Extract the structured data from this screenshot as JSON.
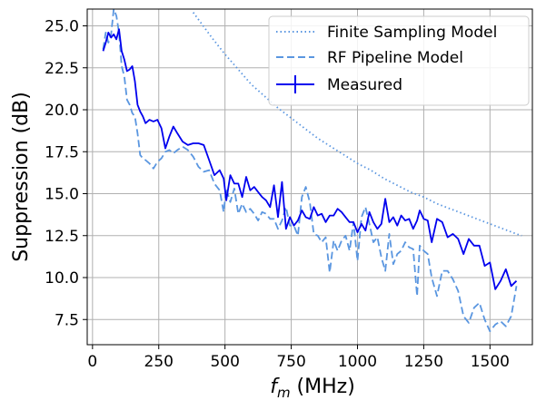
{
  "chart_data": {
    "type": "line",
    "title": "",
    "xlabel_italic": "f",
    "xlabel_sub": "m",
    "xlabel_rest": " (MHz)",
    "ylabel": "Suppression (dB)",
    "xlim": [
      -20,
      1660
    ],
    "ylim": [
      6.0,
      26.0
    ],
    "xticks": [
      0,
      250,
      500,
      750,
      1000,
      1250,
      1500
    ],
    "yticks": [
      7.5,
      10.0,
      12.5,
      15.0,
      17.5,
      20.0,
      22.5,
      25.0
    ],
    "grid": true,
    "legend_position": "top-right",
    "series": [
      {
        "name": "Finite Sampling Model",
        "style": "dotted",
        "color": "#5a96e0",
        "x": [
          380,
          450,
          500,
          550,
          600,
          650,
          700,
          750,
          800,
          850,
          900,
          950,
          1000,
          1050,
          1100,
          1150,
          1200,
          1250,
          1300,
          1350,
          1400,
          1450,
          1500,
          1550,
          1600,
          1620
        ],
        "y": [
          25.8,
          24.3,
          23.3,
          22.4,
          21.5,
          20.8,
          20.1,
          19.5,
          18.9,
          18.3,
          17.8,
          17.3,
          16.8,
          16.4,
          15.9,
          15.5,
          15.1,
          14.8,
          14.4,
          14.1,
          13.8,
          13.5,
          13.2,
          12.9,
          12.6,
          12.5
        ]
      },
      {
        "name": "RF Pipeline Model",
        "style": "dashed",
        "color": "#5a96e0",
        "x": [
          40,
          50,
          60,
          70,
          80,
          90,
          100,
          110,
          120,
          130,
          140,
          150,
          160,
          170,
          180,
          190,
          200,
          215,
          230,
          245,
          260,
          275,
          290,
          305,
          320,
          340,
          360,
          380,
          400,
          420,
          440,
          460,
          480,
          495,
          505,
          520,
          535,
          550,
          565,
          580,
          595,
          610,
          625,
          640,
          655,
          670,
          685,
          700,
          715,
          730,
          745,
          760,
          775,
          790,
          805,
          820,
          835,
          850,
          865,
          880,
          895,
          910,
          925,
          940,
          955,
          970,
          985,
          1000,
          1015,
          1030,
          1045,
          1060,
          1075,
          1090,
          1105,
          1120,
          1135,
          1150,
          1165,
          1180,
          1195,
          1210,
          1225,
          1235,
          1250,
          1265,
          1280,
          1300,
          1320,
          1340,
          1360,
          1380,
          1400,
          1420,
          1440,
          1460,
          1480,
          1500,
          1520,
          1540,
          1560,
          1580,
          1600
        ],
        "y": [
          23.6,
          24.6,
          24.0,
          24.5,
          26.0,
          25.6,
          24.6,
          22.6,
          22.0,
          20.6,
          20.3,
          19.8,
          19.6,
          18.6,
          17.3,
          17.1,
          17.0,
          16.8,
          16.5,
          16.9,
          17.1,
          17.5,
          17.6,
          17.4,
          17.6,
          17.8,
          17.6,
          17.2,
          16.6,
          16.3,
          16.4,
          15.6,
          15.2,
          13.9,
          15.3,
          14.5,
          15.3,
          13.8,
          14.4,
          13.9,
          14.1,
          13.8,
          13.4,
          13.9,
          13.8,
          13.5,
          13.5,
          12.9,
          13.4,
          14.2,
          13.1,
          13.1,
          12.5,
          14.8,
          15.4,
          14.5,
          12.6,
          12.5,
          12.1,
          12.4,
          10.3,
          12.2,
          11.6,
          12.2,
          12.5,
          11.6,
          13.3,
          11.0,
          13.6,
          14.2,
          13.2,
          12.1,
          12.4,
          11.2,
          10.4,
          12.6,
          10.8,
          11.4,
          11.6,
          12.1,
          11.8,
          11.7,
          8.9,
          11.9,
          11.6,
          11.4,
          10.0,
          8.9,
          10.4,
          10.4,
          9.9,
          9.2,
          7.7,
          7.3,
          8.2,
          8.5,
          7.5,
          6.8,
          7.2,
          7.4,
          7.1,
          7.7,
          9.5
        ]
      },
      {
        "name": "Measured",
        "style": "solid",
        "color": "#0000ee",
        "x": [
          40,
          50,
          60,
          70,
          80,
          90,
          100,
          110,
          120,
          130,
          140,
          150,
          160,
          170,
          180,
          190,
          200,
          215,
          230,
          245,
          260,
          275,
          290,
          305,
          320,
          340,
          360,
          380,
          400,
          420,
          440,
          460,
          480,
          495,
          505,
          520,
          535,
          550,
          565,
          580,
          595,
          610,
          625,
          640,
          655,
          670,
          685,
          700,
          715,
          730,
          745,
          760,
          775,
          790,
          805,
          820,
          835,
          850,
          865,
          880,
          895,
          910,
          925,
          940,
          955,
          970,
          985,
          1000,
          1015,
          1030,
          1045,
          1060,
          1075,
          1090,
          1105,
          1120,
          1135,
          1150,
          1165,
          1180,
          1195,
          1210,
          1225,
          1235,
          1250,
          1265,
          1280,
          1300,
          1320,
          1340,
          1360,
          1380,
          1400,
          1420,
          1440,
          1460,
          1480,
          1500,
          1520,
          1540,
          1560,
          1580,
          1600
        ],
        "y": [
          23.5,
          24.0,
          24.6,
          24.3,
          24.5,
          24.2,
          24.8,
          23.5,
          23.0,
          22.3,
          22.4,
          22.6,
          21.7,
          20.3,
          19.9,
          19.6,
          19.2,
          19.4,
          19.3,
          19.4,
          18.9,
          17.7,
          18.4,
          19.0,
          18.6,
          18.1,
          17.9,
          18.0,
          18.0,
          17.9,
          17.0,
          16.1,
          16.4,
          15.9,
          14.6,
          16.1,
          15.6,
          15.6,
          14.8,
          16.0,
          15.2,
          15.4,
          15.1,
          14.8,
          14.6,
          14.2,
          15.5,
          13.6,
          15.7,
          12.9,
          13.6,
          13.1,
          13.4,
          14.0,
          13.6,
          13.5,
          14.2,
          13.7,
          13.8,
          13.3,
          13.7,
          13.7,
          14.1,
          13.9,
          13.6,
          13.3,
          13.3,
          12.7,
          13.2,
          12.8,
          13.9,
          13.3,
          12.9,
          13.2,
          14.7,
          13.3,
          13.6,
          13.1,
          13.7,
          13.4,
          13.5,
          12.9,
          13.4,
          14.0,
          13.5,
          13.4,
          12.1,
          13.5,
          13.3,
          12.4,
          12.6,
          12.3,
          11.4,
          12.3,
          11.9,
          11.9,
          10.7,
          10.9,
          9.3,
          9.8,
          10.5,
          9.5,
          9.8
        ]
      }
    ]
  }
}
